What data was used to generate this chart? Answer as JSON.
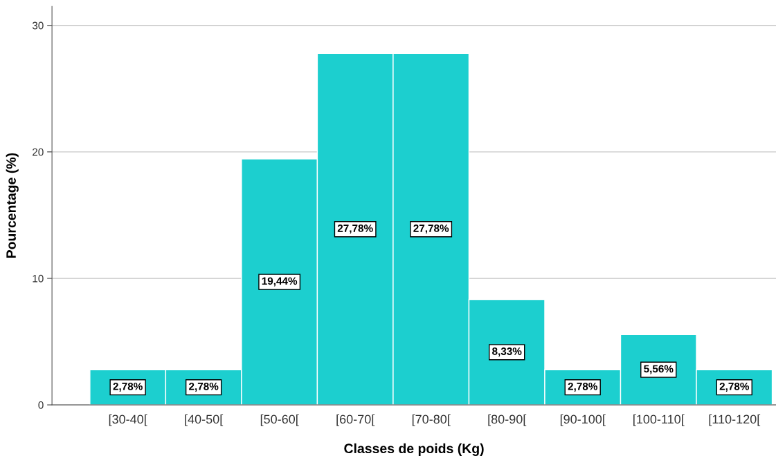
{
  "chart_data": {
    "type": "bar",
    "xlabel": "Classes de poids (Kg)",
    "ylabel": "Pourcentage (%)",
    "categories": [
      "[30-40[",
      "[40-50[",
      "[50-60[",
      "[60-70[",
      "[70-80[",
      "[80-90[",
      "[90-100[",
      "[100-110[",
      "[110-120["
    ],
    "values": [
      2.78,
      2.78,
      19.44,
      27.78,
      27.78,
      8.33,
      2.78,
      5.56,
      2.78
    ],
    "value_labels": [
      "2,78%",
      "2,78%",
      "19,44%",
      "27,78%",
      "27,78%",
      "8,33%",
      "2,78%",
      "5,56%",
      "2,78%"
    ],
    "color": "#1ccfcf",
    "ylim": [
      0,
      31.5
    ],
    "yticks": [
      0,
      10,
      20,
      30
    ],
    "grid": "y"
  }
}
